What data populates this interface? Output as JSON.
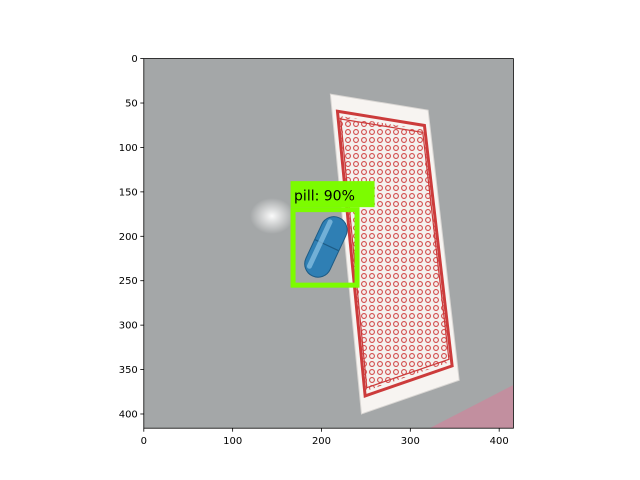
{
  "chart_data": {
    "type": "image-detection",
    "title": "",
    "xlabel": "",
    "ylabel": "",
    "xlim": [
      0,
      416
    ],
    "ylim": [
      416,
      0
    ],
    "xticks": [
      0,
      100,
      200,
      300,
      400
    ],
    "yticks": [
      0,
      50,
      100,
      150,
      200,
      250,
      300,
      350,
      400
    ],
    "detections": [
      {
        "label": "pill: 90%",
        "box": {
          "x_min": 168,
          "y_min": 170,
          "x_max": 240,
          "y_max": 255
        },
        "color": "#7cfc00"
      }
    ],
    "scene": {
      "card": {
        "corners": [
          [
            210,
            40
          ],
          [
            320,
            58
          ],
          [
            355,
            362
          ],
          [
            245,
            400
          ]
        ],
        "color": "#f4f1ee",
        "pattern_color": "#d24a4a"
      },
      "capsule": {
        "center": [
          205,
          212
        ],
        "length": 72,
        "width": 30,
        "angle": -65,
        "color": "#2f7fb4"
      },
      "background_color": "#a4a7a8"
    }
  }
}
